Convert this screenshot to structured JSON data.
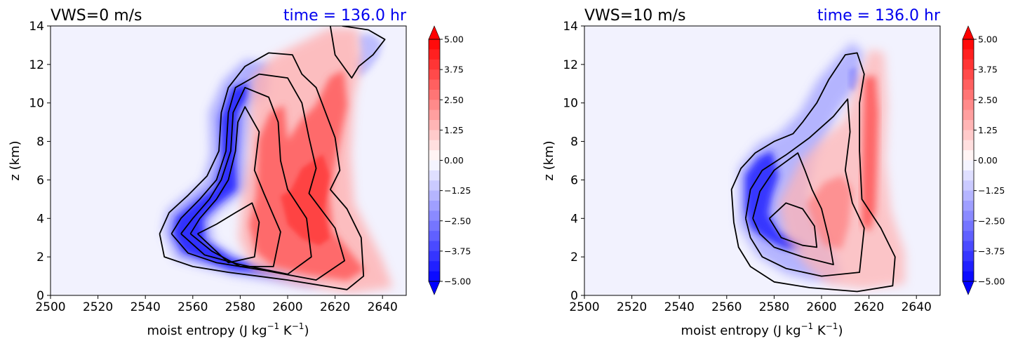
{
  "chart_data": [
    {
      "type": "heatmap",
      "title": "VWS=0 m/s",
      "time_label": "time = 136.0 hr",
      "title_color": "#000000",
      "time_color": "#0000ee",
      "xlabel": "moist entropy (J kg",
      "xlabel_sup1": "−1",
      "xlabel_mid": " K",
      "xlabel_sup2": "−1",
      "xlabel_end": ")",
      "ylabel": "z (km)",
      "xlim": [
        2500,
        2650
      ],
      "ylim": [
        0,
        14
      ],
      "xticks": [
        "2500",
        "2520",
        "2540",
        "2560",
        "2580",
        "2600",
        "2620",
        "2640"
      ],
      "yticks": [
        "0",
        "2",
        "4",
        "6",
        "8",
        "10",
        "12",
        "14"
      ],
      "colorbar": {
        "range": [
          -5.0,
          5.0
        ],
        "colormap": "bwr",
        "extend": "both",
        "ticks": [
          "5.00",
          "3.75",
          "2.50",
          "1.25",
          "0.00",
          "−1.25",
          "−2.50",
          "−3.75",
          "−5.00"
        ]
      },
      "contours": [
        [
          [
            2546,
            3.2
          ],
          [
            2550,
            4.3
          ],
          [
            2558,
            5.2
          ],
          [
            2566,
            6.2
          ],
          [
            2571,
            7.5
          ],
          [
            2572,
            9.5
          ],
          [
            2575,
            10.8
          ],
          [
            2582,
            11.9
          ],
          [
            2592,
            12.6
          ],
          [
            2602,
            12.5
          ],
          [
            2606,
            11.5
          ],
          [
            2612,
            10.8
          ],
          [
            2616,
            9.5
          ],
          [
            2620,
            8.2
          ],
          [
            2622,
            6.5
          ],
          [
            2618,
            5.5
          ],
          [
            2625,
            4.5
          ],
          [
            2631,
            3.0
          ],
          [
            2632,
            1.0
          ],
          [
            2625,
            0.3
          ],
          [
            2600,
            0.8
          ],
          [
            2575,
            1.2
          ],
          [
            2560,
            1.5
          ],
          [
            2548,
            2.0
          ],
          [
            2546,
            3.2
          ]
        ],
        [
          [
            2551,
            3.2
          ],
          [
            2555,
            4.0
          ],
          [
            2563,
            5.0
          ],
          [
            2570,
            6.0
          ],
          [
            2574,
            7.5
          ],
          [
            2575,
            9.5
          ],
          [
            2578,
            10.8
          ],
          [
            2588,
            11.5
          ],
          [
            2600,
            11.3
          ],
          [
            2606,
            10.0
          ],
          [
            2609,
            8.2
          ],
          [
            2612,
            6.6
          ],
          [
            2609,
            5.3
          ],
          [
            2620,
            3.5
          ],
          [
            2624,
            1.8
          ],
          [
            2612,
            0.8
          ],
          [
            2590,
            1.3
          ],
          [
            2570,
            1.7
          ],
          [
            2558,
            2.2
          ],
          [
            2551,
            3.2
          ]
        ],
        [
          [
            2555,
            3.2
          ],
          [
            2560,
            4.0
          ],
          [
            2567,
            5.0
          ],
          [
            2572,
            6.0
          ],
          [
            2576,
            7.5
          ],
          [
            2577,
            9.5
          ],
          [
            2582,
            10.8
          ],
          [
            2592,
            10.3
          ],
          [
            2596,
            9.0
          ],
          [
            2597,
            7.0
          ],
          [
            2600,
            5.5
          ],
          [
            2608,
            4.0
          ],
          [
            2610,
            2.0
          ],
          [
            2600,
            1.1
          ],
          [
            2580,
            1.6
          ],
          [
            2565,
            2.1
          ],
          [
            2555,
            3.2
          ]
        ],
        [
          [
            2559,
            3.2
          ],
          [
            2563,
            4.0
          ],
          [
            2570,
            5.0
          ],
          [
            2575,
            6.0
          ],
          [
            2578,
            7.5
          ],
          [
            2579,
            9.0
          ],
          [
            2582,
            9.8
          ],
          [
            2588,
            8.5
          ],
          [
            2586,
            6.5
          ],
          [
            2590,
            5.3
          ],
          [
            2597,
            3.3
          ],
          [
            2594,
            1.5
          ],
          [
            2580,
            1.5
          ],
          [
            2568,
            2.3
          ],
          [
            2559,
            3.2
          ]
        ],
        [
          [
            2562,
            3.2
          ],
          [
            2570,
            3.7
          ],
          [
            2578,
            4.3
          ],
          [
            2585,
            4.8
          ],
          [
            2588,
            3.8
          ],
          [
            2586,
            2.0
          ],
          [
            2575,
            1.7
          ],
          [
            2562,
            3.2
          ]
        ],
        [
          [
            2623,
            14.0
          ],
          [
            2634,
            13.8
          ],
          [
            2641,
            13.3
          ],
          [
            2636,
            12.5
          ],
          [
            2630,
            11.9
          ],
          [
            2627,
            11.3
          ],
          [
            2620,
            12.5
          ],
          [
            2618,
            14.0
          ]
        ]
      ]
    },
    {
      "type": "heatmap",
      "title": "VWS=10 m/s",
      "time_label": "time = 136.0 hr",
      "title_color": "#000000",
      "time_color": "#0000ee",
      "xlabel": "moist entropy (J kg",
      "xlabel_sup1": "−1",
      "xlabel_mid": " K",
      "xlabel_sup2": "−1",
      "xlabel_end": ")",
      "ylabel": "z (km)",
      "xlim": [
        2500,
        2650
      ],
      "ylim": [
        0,
        14
      ],
      "xticks": [
        "2500",
        "2520",
        "2540",
        "2560",
        "2580",
        "2600",
        "2620",
        "2640"
      ],
      "yticks": [
        "0",
        "2",
        "4",
        "6",
        "8",
        "10",
        "12",
        "14"
      ],
      "colorbar": {
        "range": [
          -5.0,
          5.0
        ],
        "colormap": "bwr",
        "extend": "both",
        "ticks": [
          "5.00",
          "3.75",
          "2.50",
          "1.25",
          "0.00",
          "−1.25",
          "−2.50",
          "−3.75",
          "−5.00"
        ]
      },
      "contours": [
        [
          [
            2563,
            3.8
          ],
          [
            2562,
            5.5
          ],
          [
            2566,
            6.6
          ],
          [
            2572,
            7.4
          ],
          [
            2580,
            8.0
          ],
          [
            2588,
            8.4
          ],
          [
            2592,
            9.0
          ],
          [
            2598,
            10.0
          ],
          [
            2603,
            11.2
          ],
          [
            2610,
            12.5
          ],
          [
            2615,
            12.6
          ],
          [
            2618,
            11.5
          ],
          [
            2616,
            10.0
          ],
          [
            2616,
            7.5
          ],
          [
            2617,
            5.0
          ],
          [
            2625,
            3.5
          ],
          [
            2631,
            2.0
          ],
          [
            2630,
            0.5
          ],
          [
            2615,
            0.2
          ],
          [
            2595,
            0.4
          ],
          [
            2580,
            0.7
          ],
          [
            2570,
            1.5
          ],
          [
            2565,
            2.5
          ],
          [
            2563,
            3.8
          ]
        ],
        [
          [
            2568,
            4.0
          ],
          [
            2570,
            5.5
          ],
          [
            2575,
            6.5
          ],
          [
            2585,
            7.3
          ],
          [
            2595,
            8.2
          ],
          [
            2605,
            9.3
          ],
          [
            2611,
            10.2
          ],
          [
            2612,
            8.5
          ],
          [
            2610,
            6.5
          ],
          [
            2613,
            4.8
          ],
          [
            2618,
            3.5
          ],
          [
            2616,
            1.2
          ],
          [
            2600,
            1.0
          ],
          [
            2585,
            1.4
          ],
          [
            2575,
            2.0
          ],
          [
            2570,
            3.0
          ],
          [
            2568,
            4.0
          ]
        ],
        [
          [
            2571,
            4.0
          ],
          [
            2574,
            5.4
          ],
          [
            2580,
            6.5
          ],
          [
            2590,
            7.4
          ],
          [
            2593,
            6.5
          ],
          [
            2596,
            5.5
          ],
          [
            2600,
            4.5
          ],
          [
            2603,
            3.0
          ],
          [
            2605,
            1.6
          ],
          [
            2592,
            2.0
          ],
          [
            2580,
            2.5
          ],
          [
            2574,
            3.2
          ],
          [
            2571,
            4.0
          ]
        ],
        [
          [
            2578,
            4.0
          ],
          [
            2583,
            3.0
          ],
          [
            2592,
            2.6
          ],
          [
            2598,
            2.5
          ],
          [
            2597,
            3.6
          ],
          [
            2592,
            4.5
          ],
          [
            2585,
            4.8
          ],
          [
            2578,
            4.0
          ]
        ]
      ]
    }
  ]
}
